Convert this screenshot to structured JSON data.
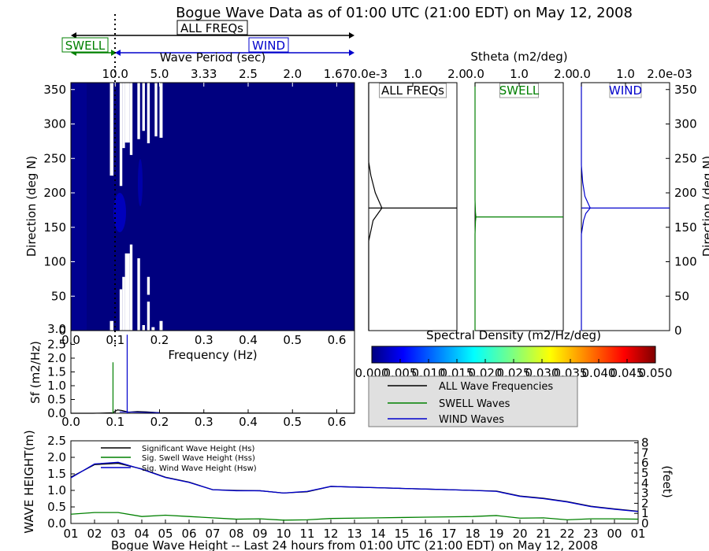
{
  "title": "Bogue Wave Data as of 01:00 UTC (21:00 EDT) on May 12, 2008",
  "colors": {
    "all": "#000000",
    "swell": "#008000",
    "wind": "#0000cc",
    "spectrum_bg": "#00007f",
    "legend_bg": "#e0e0e0"
  },
  "band_labels": {
    "all": "ALL FREQs",
    "swell": "SWELL",
    "wind": "WIND"
  },
  "chart_data": [
    {
      "id": "directional_spectrum",
      "type": "heatmap",
      "title": "",
      "xlabel": "Frequency (Hz)",
      "ylabel": "Direction (deg N)",
      "top_xlabel": "Wave Period (sec)",
      "xlim": [
        0.0,
        0.64
      ],
      "ylim": [
        0,
        360
      ],
      "x_ticks": [
        0.0,
        0.1,
        0.2,
        0.3,
        0.4,
        0.5,
        0.6
      ],
      "x_tick_labels": [
        "0.0",
        "0.1",
        "0.2",
        "0.3",
        "0.4",
        "0.5",
        "0.6"
      ],
      "y_ticks": [
        0,
        50,
        100,
        150,
        200,
        250,
        300,
        350
      ],
      "top_ticks_freq": [
        0.1,
        0.2,
        0.3,
        0.4,
        0.5,
        0.6
      ],
      "top_tick_labels": [
        "10.0",
        "5.0",
        "3.33",
        "2.5",
        "2.0",
        "1.67"
      ],
      "swell_wind_separation_freq": 0.1,
      "white_bars": [
        {
          "f": [
            0.088,
            0.096
          ],
          "dir": [
            225,
            360
          ]
        },
        {
          "f": [
            0.088,
            0.096
          ],
          "dir": [
            0,
            14
          ]
        },
        {
          "f": [
            0.11,
            0.116
          ],
          "dir": [
            0,
            60
          ]
        },
        {
          "f": [
            0.11,
            0.116
          ],
          "dir": [
            210,
            360
          ]
        },
        {
          "f": [
            0.116,
            0.122
          ],
          "dir": [
            0,
            78
          ]
        },
        {
          "f": [
            0.116,
            0.122
          ],
          "dir": [
            265,
            360
          ]
        },
        {
          "f": [
            0.122,
            0.133
          ],
          "dir": [
            0,
            112
          ]
        },
        {
          "f": [
            0.122,
            0.133
          ],
          "dir": [
            273,
            360
          ]
        },
        {
          "f": [
            0.133,
            0.139
          ],
          "dir": [
            0,
            125
          ]
        },
        {
          "f": [
            0.133,
            0.139
          ],
          "dir": [
            255,
            360
          ]
        },
        {
          "f": [
            0.15,
            0.156
          ],
          "dir": [
            0,
            105
          ]
        },
        {
          "f": [
            0.15,
            0.156
          ],
          "dir": [
            278,
            360
          ]
        },
        {
          "f": [
            0.161,
            0.167
          ],
          "dir": [
            0,
            8
          ]
        },
        {
          "f": [
            0.161,
            0.167
          ],
          "dir": [
            290,
            360
          ]
        },
        {
          "f": [
            0.172,
            0.178
          ],
          "dir": [
            0,
            42
          ]
        },
        {
          "f": [
            0.172,
            0.178
          ],
          "dir": [
            272,
            360
          ]
        },
        {
          "f": [
            0.172,
            0.178
          ],
          "dir": [
            52,
            78
          ]
        },
        {
          "f": [
            0.182,
            0.189
          ],
          "dir": [
            0,
            5
          ]
        },
        {
          "f": [
            0.189,
            0.195
          ],
          "dir": [
            282,
            360
          ]
        },
        {
          "f": [
            0.2,
            0.207
          ],
          "dir": [
            0,
            14
          ]
        },
        {
          "f": [
            0.2,
            0.207
          ],
          "dir": [
            280,
            360
          ]
        }
      ]
    },
    {
      "id": "stheta_all",
      "type": "line",
      "title": "ALL FREQs",
      "top_xlabel": "Stheta (m2/deg)",
      "x_tick_labels": [
        "0.0e-3",
        "1.0",
        "2.0"
      ],
      "xlim": [
        0,
        2.0
      ],
      "ylim": [
        0,
        360
      ],
      "x": [
        0.0,
        0.0,
        0.1,
        0.3,
        0.15,
        0.05,
        0.0,
        0.0
      ],
      "y": [
        0,
        130,
        160,
        178,
        200,
        225,
        245,
        360
      ],
      "peak_line_dir": 178
    },
    {
      "id": "stheta_swell",
      "type": "line",
      "title": "SWELL",
      "x_tick_labels": [
        "0.0",
        "1.0",
        "2.0"
      ],
      "xlim": [
        0,
        2.0
      ],
      "ylim": [
        0,
        360
      ],
      "x": [
        0.0,
        0.0,
        0.01,
        0.02,
        0.01,
        0.0,
        0.0
      ],
      "y": [
        0,
        140,
        158,
        165,
        172,
        190,
        360
      ],
      "peak_line_dir": 165
    },
    {
      "id": "stheta_wind",
      "type": "line",
      "title": "WIND",
      "x_tick_labels": [
        "0.0",
        "1.0",
        "2.0e-03"
      ],
      "xlim": [
        0,
        2.0
      ],
      "ylim": [
        0,
        360
      ],
      "y_ticks_right": [
        0,
        50,
        100,
        150,
        200,
        250,
        300,
        350
      ],
      "right_ylabel": "Direction (deg N)",
      "x": [
        0.0,
        0.0,
        0.05,
        0.1,
        0.2,
        0.08,
        0.03,
        0.0,
        0.0
      ],
      "y": [
        0,
        140,
        160,
        170,
        178,
        195,
        215,
        240,
        360
      ],
      "peak_line_dir": 178
    },
    {
      "id": "colorbar",
      "type": "heatmap",
      "title": "Spectral Density (m2/Hz/deg)",
      "ticks": [
        0.0,
        0.005,
        0.01,
        0.015,
        0.02,
        0.025,
        0.03,
        0.035,
        0.04,
        0.045,
        0.05
      ],
      "tick_labels": [
        "0.000",
        "0.005",
        "0.010",
        "0.015",
        "0.020",
        "0.025",
        "0.030",
        "0.035",
        "0.040",
        "0.045",
        "0.050"
      ]
    },
    {
      "id": "frequency_spectrum",
      "type": "line",
      "xlabel": "Frequency (Hz)",
      "ylabel": "Sf (m2/Hz)",
      "xlim": [
        0.0,
        0.64
      ],
      "ylim": [
        0.0,
        3.0
      ],
      "x_tick_labels": [
        "0.0",
        "0.1",
        "0.2",
        "0.3",
        "0.4",
        "0.5",
        "0.6"
      ],
      "y_ticks": [
        0.0,
        0.5,
        1.0,
        1.5,
        2.0,
        2.5,
        3.0
      ],
      "y_tick_labels": [
        "0.0",
        "0.5",
        "1.0",
        "1.5",
        "2.0",
        "2.5",
        "3.0"
      ],
      "x": [
        0.0,
        0.05,
        0.08,
        0.095,
        0.105,
        0.115,
        0.13,
        0.15,
        0.17,
        0.2,
        0.3,
        0.5,
        0.64
      ],
      "series": [
        {
          "name": "ALL Wave Frequencies",
          "values": [
            0,
            0,
            0.01,
            0.02,
            0.12,
            0.1,
            0.04,
            0.06,
            0.05,
            0.02,
            0.01,
            0.005,
            0
          ]
        },
        {
          "name": "SWELL Waves",
          "spike_freq": 0.095,
          "spike_value": 1.85
        },
        {
          "name": "WIND Waves",
          "spike_freq": 0.127,
          "spike_value": 2.85
        }
      ]
    },
    {
      "id": "wave_height_24h",
      "type": "line",
      "xlabel": "Bogue Wave Height -- Last 24 hours from 01:00 UTC (21:00 EDT) on May 12, 2008",
      "ylabel": "WAVE HEIGHT(m)",
      "right_ylabel": "(feet)",
      "ylim": [
        0.0,
        2.5
      ],
      "y_ticks": [
        0.0,
        0.5,
        1.0,
        1.5,
        2.0,
        2.5
      ],
      "y_tick_labels": [
        "0.0",
        "0.5",
        "1.0",
        "1.5",
        "2.0",
        "2.5"
      ],
      "right_ticks": [
        0,
        1,
        2,
        3,
        4,
        5,
        6,
        7,
        8
      ],
      "categories": [
        "01",
        "02",
        "03",
        "04",
        "05",
        "06",
        "07",
        "08",
        "09",
        "10",
        "11",
        "12",
        "13",
        "14",
        "15",
        "16",
        "17",
        "18",
        "19",
        "20",
        "21",
        "22",
        "23",
        "00",
        "01"
      ],
      "series": [
        {
          "name": "Significant Wave Height (Hs)",
          "values": [
            1.4,
            1.78,
            1.82,
            1.65,
            1.4,
            1.25,
            1.02,
            1.0,
            0.99,
            0.92,
            0.96,
            1.12,
            1.1,
            1.08,
            1.06,
            1.04,
            1.02,
            1.0,
            0.98,
            0.83,
            0.76,
            0.66,
            0.52,
            0.44,
            0.37
          ]
        },
        {
          "name": "Sig. Swell Wave Height (Hss)",
          "values": [
            0.28,
            0.33,
            0.33,
            0.21,
            0.25,
            0.21,
            0.17,
            0.13,
            0.14,
            0.1,
            0.11,
            0.15,
            0.16,
            0.17,
            0.18,
            0.19,
            0.2,
            0.21,
            0.24,
            0.16,
            0.17,
            0.11,
            0.14,
            0.14,
            0.13
          ]
        },
        {
          "name": "Sig. Wind Wave Height (Hsw)",
          "values": [
            1.38,
            1.8,
            1.85,
            1.64,
            1.39,
            1.24,
            1.02,
            0.99,
            0.99,
            0.92,
            0.97,
            1.12,
            1.1,
            1.08,
            1.06,
            1.04,
            1.02,
            1.0,
            0.97,
            0.82,
            0.75,
            0.65,
            0.51,
            0.43,
            0.36
          ]
        }
      ]
    }
  ]
}
